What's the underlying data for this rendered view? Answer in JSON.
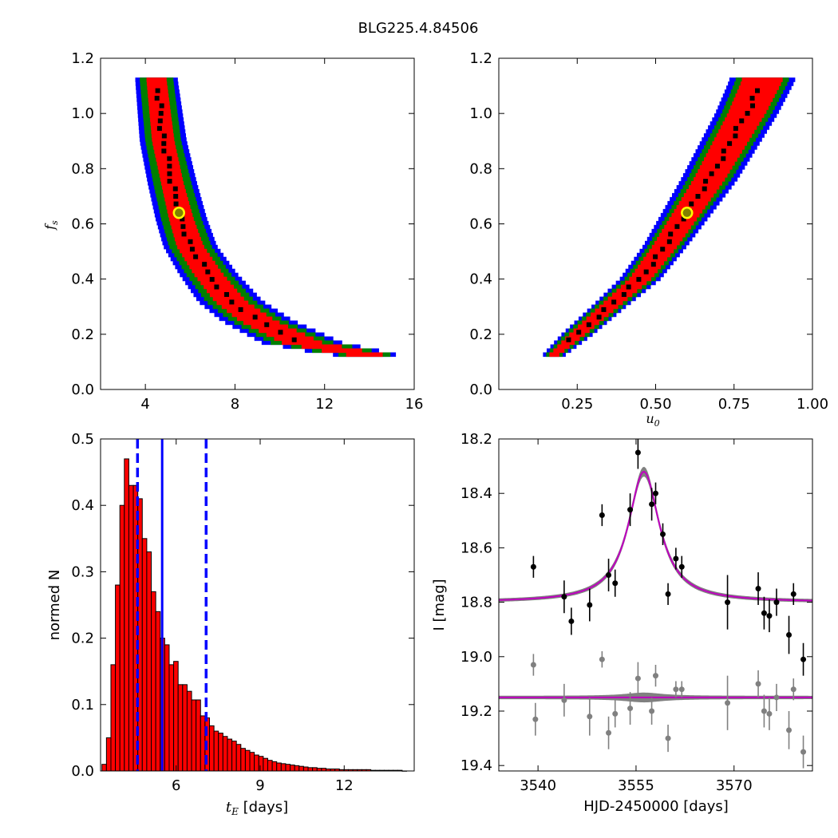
{
  "figure_title": "BLG225.4.84506",
  "colors": {
    "sigma3": "#0000ff",
    "sigma2": "#007f00",
    "sigma1": "#ff0000",
    "best_cells": "#000000",
    "marker_fill": "#808000",
    "marker_edge": "#ffff00",
    "hist_bar": "#ff0000",
    "vline": "#0000ff",
    "model_line": "#bf00bf",
    "band": "#808080",
    "residual_point": "#808080"
  },
  "chart_data": [
    {
      "id": "tE_fs",
      "type": "heatmap",
      "xlabel": "",
      "ylabel": "f_s",
      "xlim": [
        2,
        16
      ],
      "ylim": [
        0,
        1.2
      ],
      "xticks": [
        4,
        8,
        12,
        16
      ],
      "yticks": [
        0.0,
        0.2,
        0.4,
        0.6,
        0.8,
        1.0,
        1.2
      ],
      "best_fit": {
        "x": 5.5,
        "y": 0.64
      },
      "ridge": [
        [
          4.5,
          1.12
        ],
        [
          4.8,
          0.9
        ],
        [
          5.2,
          0.75
        ],
        [
          5.6,
          0.62
        ],
        [
          6.0,
          0.52
        ],
        [
          6.8,
          0.42
        ],
        [
          7.8,
          0.32
        ],
        [
          9.0,
          0.25
        ],
        [
          11.0,
          0.17
        ],
        [
          13.5,
          0.13
        ],
        [
          14.5,
          0.12
        ]
      ],
      "half_width": {
        "sigma1": [
          0.45,
          0.5,
          0.5,
          0.55,
          0.6,
          0.65,
          0.7,
          0.8,
          0.9,
          0.9,
          0.6
        ],
        "sigma2": [
          0.75,
          0.8,
          0.85,
          0.9,
          0.95,
          1.0,
          1.1,
          1.2,
          1.4,
          1.3,
          0.8
        ],
        "sigma3": [
          0.95,
          1.05,
          1.1,
          1.15,
          1.2,
          1.3,
          1.45,
          1.6,
          1.8,
          1.6,
          0.9
        ]
      },
      "y_min_region": 0.12,
      "y_max_region": 1.13
    },
    {
      "id": "u0_fs",
      "type": "heatmap",
      "xlabel": "u_0",
      "ylabel": "",
      "xlim": [
        0.0,
        1.0
      ],
      "ylim": [
        0,
        1.2
      ],
      "xticks": [
        0.25,
        0.5,
        0.75,
        1.0
      ],
      "yticks": [
        0.0,
        0.2,
        0.4,
        0.6,
        0.8,
        1.0,
        1.2
      ],
      "best_fit": {
        "x": 0.6,
        "y": 0.64
      },
      "ridge": [
        [
          0.17,
          0.12
        ],
        [
          0.25,
          0.2
        ],
        [
          0.35,
          0.3
        ],
        [
          0.45,
          0.4
        ],
        [
          0.53,
          0.52
        ],
        [
          0.6,
          0.64
        ],
        [
          0.67,
          0.76
        ],
        [
          0.73,
          0.88
        ],
        [
          0.79,
          1.0
        ],
        [
          0.84,
          1.12
        ]
      ],
      "half_width": {
        "sigma1": [
          0.015,
          0.025,
          0.03,
          0.035,
          0.04,
          0.045,
          0.05,
          0.055,
          0.06,
          0.065
        ],
        "sigma2": [
          0.025,
          0.04,
          0.045,
          0.05,
          0.055,
          0.06,
          0.07,
          0.075,
          0.08,
          0.085
        ],
        "sigma3": [
          0.035,
          0.05,
          0.055,
          0.065,
          0.07,
          0.08,
          0.09,
          0.095,
          0.1,
          0.105
        ]
      },
      "y_min_region": 0.12,
      "y_max_region": 1.13
    },
    {
      "id": "tE_hist",
      "type": "bar",
      "xlabel": "t_E [days]",
      "xlabel_unit": "[days]",
      "ylabel": "normed N",
      "xlim": [
        3.3,
        14.5
      ],
      "ylim": [
        0,
        0.5
      ],
      "xticks": [
        6,
        9,
        12
      ],
      "yticks": [
        0.0,
        0.1,
        0.2,
        0.3,
        0.4,
        0.5
      ],
      "bin_start": 3.35,
      "bin_width": 0.16,
      "values": [
        0.01,
        0.05,
        0.16,
        0.28,
        0.4,
        0.47,
        0.43,
        0.43,
        0.41,
        0.35,
        0.33,
        0.27,
        0.24,
        0.2,
        0.19,
        0.16,
        0.165,
        0.13,
        0.13,
        0.12,
        0.107,
        0.107,
        0.083,
        0.08,
        0.068,
        0.06,
        0.057,
        0.052,
        0.048,
        0.045,
        0.04,
        0.034,
        0.031,
        0.028,
        0.024,
        0.022,
        0.019,
        0.016,
        0.014,
        0.012,
        0.011,
        0.01,
        0.009,
        0.008,
        0.007,
        0.006,
        0.005,
        0.005,
        0.004,
        0.004,
        0.003,
        0.003,
        0.003,
        0.002,
        0.002,
        0.002,
        0.002,
        0.002,
        0.002,
        0.002,
        0.001,
        0.001,
        0.001,
        0.001,
        0.001,
        0.001,
        0.001,
        0
      ],
      "median": 5.5,
      "lower": 4.62,
      "upper": 7.07
    },
    {
      "id": "lightcurve",
      "type": "scatter",
      "xlabel": "HJD-2450000 [days]",
      "ylabel": "I [mag]",
      "xlim": [
        3534,
        3582
      ],
      "ylim": [
        19.42,
        18.2
      ],
      "xticks": [
        3540,
        3555,
        3570
      ],
      "yticks": [
        18.2,
        18.4,
        18.6,
        18.8,
        19.0,
        19.2,
        19.4
      ],
      "model": {
        "t0": 3556.2,
        "baseline": 18.8,
        "peak": 18.32,
        "width": 2.9
      },
      "residual_offset": 19.15,
      "data": [
        {
          "x": 3539.3,
          "y": 18.67,
          "err": 0.04
        },
        {
          "x": 3544.0,
          "y": 18.78,
          "err": 0.06
        },
        {
          "x": 3545.1,
          "y": 18.87,
          "err": 0.05
        },
        {
          "x": 3547.9,
          "y": 18.81,
          "err": 0.06
        },
        {
          "x": 3549.8,
          "y": 18.48,
          "err": 0.04
        },
        {
          "x": 3550.8,
          "y": 18.7,
          "err": 0.06
        },
        {
          "x": 3551.8,
          "y": 18.73,
          "err": 0.05
        },
        {
          "x": 3554.1,
          "y": 18.46,
          "err": 0.06
        },
        {
          "x": 3555.3,
          "y": 18.25,
          "err": 0.06
        },
        {
          "x": 3557.4,
          "y": 18.44,
          "err": 0.06
        },
        {
          "x": 3558.0,
          "y": 18.4,
          "err": 0.04
        },
        {
          "x": 3559.1,
          "y": 18.55,
          "err": 0.04
        },
        {
          "x": 3559.9,
          "y": 18.77,
          "err": 0.04
        },
        {
          "x": 3561.1,
          "y": 18.64,
          "err": 0.04
        },
        {
          "x": 3562.0,
          "y": 18.67,
          "err": 0.04
        },
        {
          "x": 3569.0,
          "y": 18.8,
          "err": 0.1
        },
        {
          "x": 3573.7,
          "y": 18.75,
          "err": 0.06
        },
        {
          "x": 3574.6,
          "y": 18.84,
          "err": 0.06
        },
        {
          "x": 3575.4,
          "y": 18.85,
          "err": 0.06
        },
        {
          "x": 3576.5,
          "y": 18.8,
          "err": 0.05
        },
        {
          "x": 3578.4,
          "y": 18.92,
          "err": 0.07
        },
        {
          "x": 3579.1,
          "y": 18.77,
          "err": 0.04
        },
        {
          "x": 3580.6,
          "y": 19.01,
          "err": 0.06
        }
      ],
      "residuals": [
        {
          "x": 3539.3,
          "y": 19.03,
          "err": 0.04
        },
        {
          "x": 3539.6,
          "y": 19.23,
          "err": 0.06
        },
        {
          "x": 3544.0,
          "y": 19.16,
          "err": 0.06
        },
        {
          "x": 3547.9,
          "y": 19.22,
          "err": 0.07
        },
        {
          "x": 3549.8,
          "y": 19.01,
          "err": 0.03
        },
        {
          "x": 3550.8,
          "y": 19.28,
          "err": 0.06
        },
        {
          "x": 3551.8,
          "y": 19.21,
          "err": 0.05
        },
        {
          "x": 3554.1,
          "y": 19.19,
          "err": 0.06
        },
        {
          "x": 3555.3,
          "y": 19.08,
          "err": 0.06
        },
        {
          "x": 3557.4,
          "y": 19.2,
          "err": 0.05
        },
        {
          "x": 3558.0,
          "y": 19.07,
          "err": 0.04
        },
        {
          "x": 3559.9,
          "y": 19.3,
          "err": 0.05
        },
        {
          "x": 3561.1,
          "y": 19.12,
          "err": 0.03
        },
        {
          "x": 3562.0,
          "y": 19.12,
          "err": 0.03
        },
        {
          "x": 3569.0,
          "y": 19.17,
          "err": 0.1
        },
        {
          "x": 3573.7,
          "y": 19.1,
          "err": 0.05
        },
        {
          "x": 3574.6,
          "y": 19.2,
          "err": 0.06
        },
        {
          "x": 3575.4,
          "y": 19.21,
          "err": 0.06
        },
        {
          "x": 3576.5,
          "y": 19.15,
          "err": 0.05
        },
        {
          "x": 3578.4,
          "y": 19.27,
          "err": 0.07
        },
        {
          "x": 3579.1,
          "y": 19.12,
          "err": 0.04
        },
        {
          "x": 3580.6,
          "y": 19.35,
          "err": 0.06
        }
      ]
    }
  ]
}
